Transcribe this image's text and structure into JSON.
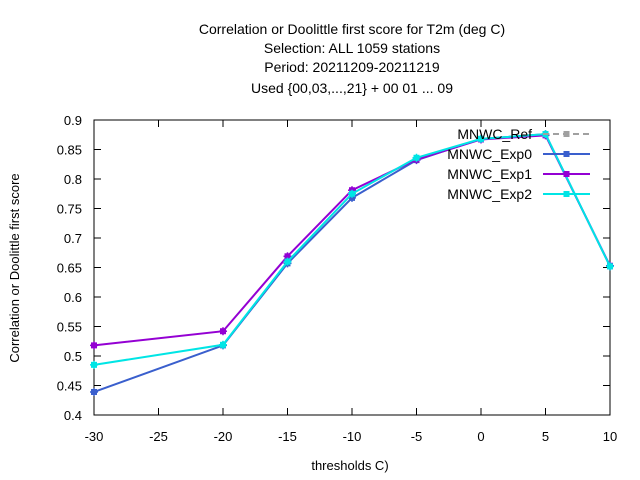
{
  "chart_data": {
    "type": "line",
    "title_lines": [
      "Correlation or Doolittle first score  for T2m (deg C)",
      "Selection: ALL    1059 stations",
      "Period: 20211209-20211219",
      "Used {00,03,...,21} + 00 01 ... 09"
    ],
    "xlabel": "thresholds C)",
    "ylabel": "Correlation or Doolittle first score",
    "xlim": [
      -30,
      10
    ],
    "ylim": [
      0.4,
      0.9
    ],
    "x_ticks": [
      -30,
      -25,
      -20,
      -15,
      -10,
      -5,
      0,
      5,
      10
    ],
    "x_tick_labels": [
      "-30",
      "-25",
      "-20",
      "-15",
      "-10",
      "-5",
      "0",
      "5",
      "10"
    ],
    "y_ticks": [
      0.4,
      0.45,
      0.5,
      0.55,
      0.6,
      0.65,
      0.7,
      0.75,
      0.8,
      0.85,
      0.9
    ],
    "y_tick_labels": [
      "0.4",
      "0.45",
      "0.5",
      "0.55",
      "0.6",
      "0.65",
      "0.7",
      "0.75",
      "0.8",
      "0.85",
      "0.9"
    ],
    "grid": false,
    "legend_position": "top-right",
    "series": [
      {
        "name": "MNWC_Ref",
        "color": "#a0a0a0",
        "dashed": true,
        "x": [],
        "y": []
      },
      {
        "name": "MNWC_Exp0",
        "color": "#3a5fcd",
        "dashed": false,
        "x": [
          -30,
          -20,
          -15,
          -10,
          -5,
          0,
          5,
          10
        ],
        "y": [
          0.439,
          0.518,
          0.657,
          0.768,
          0.832,
          0.868,
          0.876,
          0.652
        ]
      },
      {
        "name": "MNWC_Exp1",
        "color": "#9400d3",
        "dashed": false,
        "x": [
          -30,
          -20,
          -15,
          -10,
          -5,
          0,
          5,
          10
        ],
        "y": [
          0.518,
          0.542,
          0.669,
          0.781,
          0.833,
          0.867,
          0.874,
          0.653
        ]
      },
      {
        "name": "MNWC_Exp2",
        "color": "#00e5e5",
        "dashed": false,
        "x": [
          -30,
          -20,
          -15,
          -10,
          -5,
          0,
          5,
          10
        ],
        "y": [
          0.485,
          0.519,
          0.66,
          0.775,
          0.836,
          0.868,
          0.876,
          0.652
        ]
      }
    ]
  }
}
